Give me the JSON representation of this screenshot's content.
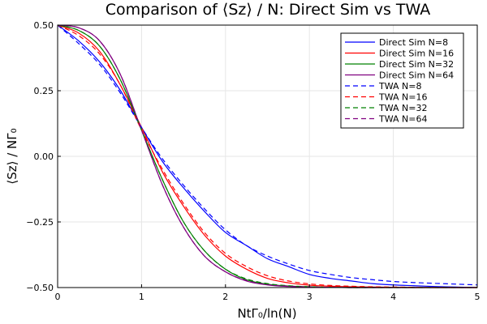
{
  "chart_data": {
    "type": "line",
    "title": "Comparison of ⟨Sz⟩ / N: Direct Sim vs TWA",
    "xlabel": "NtΓ₀/ln(N)",
    "ylabel": "⟨Sz⟩ / NΓ₀",
    "xlim": [
      0,
      5
    ],
    "ylim": [
      -0.5,
      0.5
    ],
    "x_ticks": [
      0,
      1,
      2,
      3,
      4,
      5
    ],
    "x_tick_labels": [
      "0",
      "1",
      "2",
      "3",
      "4",
      "5"
    ],
    "y_ticks": [
      0.5,
      0.25,
      0.0,
      -0.25,
      -0.5
    ],
    "y_tick_labels": [
      "0.50",
      "0.25",
      "0.00",
      "−0.25",
      "−0.50"
    ],
    "grid": true,
    "legend_position": "top-right",
    "x": [
      0,
      0.25,
      0.5,
      0.75,
      1.0,
      1.25,
      1.5,
      1.75,
      2.0,
      2.25,
      2.5,
      2.75,
      3.0,
      3.25,
      3.5,
      3.75,
      4.0,
      4.25,
      4.5,
      4.75,
      5.0
    ],
    "series": [
      {
        "name": "Direct Sim N=8",
        "color": "#0000ff",
        "dash": false,
        "values": [
          0.5,
          0.44,
          0.36,
          0.25,
          0.11,
          -0.02,
          -0.12,
          -0.21,
          -0.29,
          -0.34,
          -0.39,
          -0.42,
          -0.45,
          -0.465,
          -0.475,
          -0.485,
          -0.49,
          -0.493,
          -0.496,
          -0.498,
          -0.5
        ]
      },
      {
        "name": "Direct Sim N=16",
        "color": "#ff0000",
        "dash": false,
        "values": [
          0.5,
          0.47,
          0.4,
          0.27,
          0.11,
          -0.06,
          -0.19,
          -0.3,
          -0.38,
          -0.43,
          -0.465,
          -0.482,
          -0.491,
          -0.495,
          -0.497,
          -0.498,
          -0.499,
          -0.5,
          -0.5,
          -0.5,
          -0.5
        ]
      },
      {
        "name": "Direct Sim N=32",
        "color": "#008000",
        "dash": false,
        "values": [
          0.5,
          0.48,
          0.42,
          0.29,
          0.1,
          -0.09,
          -0.25,
          -0.36,
          -0.43,
          -0.47,
          -0.487,
          -0.494,
          -0.497,
          -0.499,
          -0.5,
          -0.5,
          -0.5,
          -0.5,
          -0.5,
          -0.5,
          -0.5
        ]
      },
      {
        "name": "Direct Sim N=64",
        "color": "#800080",
        "dash": false,
        "values": [
          0.5,
          0.49,
          0.44,
          0.31,
          0.1,
          -0.11,
          -0.27,
          -0.38,
          -0.44,
          -0.475,
          -0.49,
          -0.496,
          -0.498,
          -0.499,
          -0.5,
          -0.5,
          -0.5,
          -0.5,
          -0.5,
          -0.5,
          -0.5
        ]
      },
      {
        "name": "TWA N=8",
        "color": "#0000ff",
        "dash": true,
        "values": [
          0.5,
          0.43,
          0.35,
          0.24,
          0.11,
          -0.01,
          -0.11,
          -0.2,
          -0.28,
          -0.34,
          -0.38,
          -0.41,
          -0.435,
          -0.45,
          -0.462,
          -0.47,
          -0.477,
          -0.481,
          -0.484,
          -0.487,
          -0.49
        ]
      },
      {
        "name": "TWA N=16",
        "color": "#ff0000",
        "dash": true,
        "values": [
          0.5,
          0.46,
          0.39,
          0.27,
          0.1,
          -0.05,
          -0.18,
          -0.29,
          -0.37,
          -0.42,
          -0.455,
          -0.475,
          -0.486,
          -0.492,
          -0.495,
          -0.497,
          -0.498,
          -0.499,
          -0.5,
          -0.5,
          -0.5
        ]
      },
      {
        "name": "TWA N=32",
        "color": "#008000",
        "dash": true,
        "values": [
          0.5,
          0.48,
          0.42,
          0.29,
          0.1,
          -0.09,
          -0.25,
          -0.36,
          -0.43,
          -0.467,
          -0.485,
          -0.493,
          -0.497,
          -0.499,
          -0.5,
          -0.5,
          -0.5,
          -0.5,
          -0.5,
          -0.5,
          -0.5
        ]
      },
      {
        "name": "TWA N=64",
        "color": "#800080",
        "dash": true,
        "values": [
          0.5,
          0.49,
          0.44,
          0.31,
          0.1,
          -0.11,
          -0.27,
          -0.38,
          -0.44,
          -0.473,
          -0.489,
          -0.495,
          -0.498,
          -0.499,
          -0.5,
          -0.5,
          -0.5,
          -0.5,
          -0.5,
          -0.5,
          -0.5
        ]
      }
    ]
  }
}
